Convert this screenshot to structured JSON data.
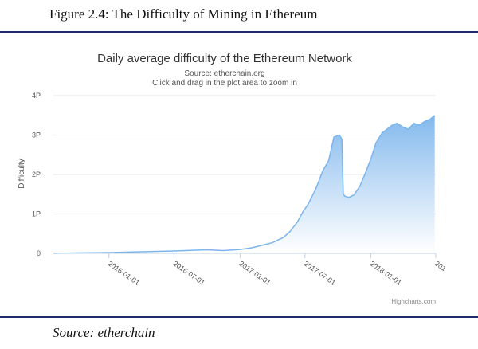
{
  "figure_caption": "Figure 2.4: The Difficulty of Mining in Ethereum",
  "source_caption": "Source: etherchain",
  "colors": {
    "rule": "#1f2a6e",
    "series_line": "#7cb5ec",
    "area_top": "#7cb5ec",
    "area_bottom": "#ffffff"
  },
  "chart_data": {
    "type": "area",
    "title": "Daily average difficulty of the Ethereum Network",
    "subtitle": "Source: etherchain.org",
    "subtitle2": "Click and drag in the plot area to zoom in",
    "ylabel": "Difficulty",
    "xlabel": "",
    "credits": "Highcharts.com",
    "yticks": [
      "0",
      "1P",
      "2P",
      "3P",
      "4P"
    ],
    "ylim": [
      0,
      4
    ],
    "xticks": [
      "2016-01-01",
      "2016-07-01",
      "2017-01-01",
      "2017-07-01",
      "2018-01-01",
      "201"
    ],
    "xlim": [
      "2015-07-30",
      "2018-07-01"
    ],
    "grid": true,
    "legend": "none",
    "series": [
      {
        "x": [
          "2015-07-30",
          "2015-10-01",
          "2016-01-01",
          "2016-04-01",
          "2016-07-01",
          "2016-09-01",
          "2016-10-01",
          "2016-11-15",
          "2017-01-01",
          "2017-02-01",
          "2017-03-01",
          "2017-04-01",
          "2017-05-01",
          "2017-05-20",
          "2017-06-10",
          "2017-06-25",
          "2017-07-10",
          "2017-08-01",
          "2017-08-20",
          "2017-09-05",
          "2017-09-20",
          "2017-10-05",
          "2017-10-12",
          "2017-10-16",
          "2017-10-20",
          "2017-11-01",
          "2017-11-15",
          "2017-12-01",
          "2017-12-15",
          "2018-01-01",
          "2018-01-15",
          "2018-02-01",
          "2018-02-15",
          "2018-03-01",
          "2018-03-15",
          "2018-04-01",
          "2018-04-15",
          "2018-05-01",
          "2018-05-15",
          "2018-06-01",
          "2018-06-15",
          "2018-06-28"
        ],
        "y": [
          0.0,
          0.01,
          0.02,
          0.04,
          0.06,
          0.08,
          0.09,
          0.07,
          0.1,
          0.14,
          0.2,
          0.27,
          0.4,
          0.55,
          0.8,
          1.05,
          1.25,
          1.65,
          2.1,
          2.35,
          2.95,
          3.0,
          2.9,
          1.5,
          1.45,
          1.42,
          1.48,
          1.7,
          2.0,
          2.4,
          2.8,
          3.05,
          3.15,
          3.25,
          3.3,
          3.2,
          3.15,
          3.3,
          3.25,
          3.35,
          3.4,
          3.5
        ]
      }
    ]
  }
}
